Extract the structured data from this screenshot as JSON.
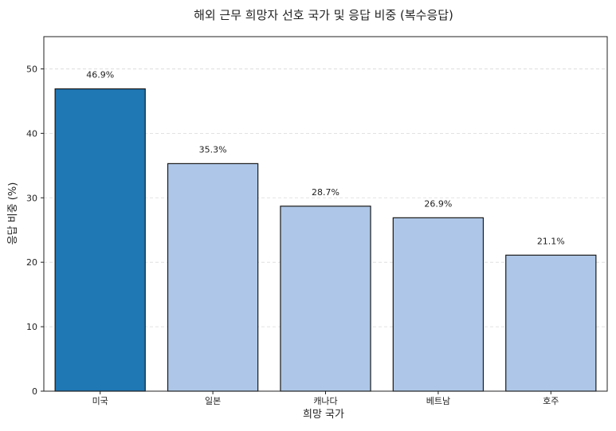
{
  "chart_data": {
    "type": "bar",
    "title": "해외 근무 희망자 선호 국가 및 응답 비중 (복수응답)",
    "xlabel": "희망 국가",
    "ylabel": "응답 비중 (%)",
    "categories": [
      "미국",
      "일본",
      "캐나다",
      "베트남",
      "호주"
    ],
    "values": [
      46.9,
      35.3,
      28.7,
      26.9,
      21.1
    ],
    "data_labels": [
      "46.9%",
      "35.3%",
      "28.7%",
      "26.9%",
      "21.1%"
    ],
    "ylim": [
      0,
      55
    ],
    "yticks": [
      0,
      10,
      20,
      30,
      40,
      50
    ],
    "grid": "y-dashed",
    "colors": {
      "highlight": "#1f77b4",
      "default": "#aec7e8",
      "edge": "#1a1a1a",
      "grid": "#d9d9d9"
    },
    "highlight_index": 0
  }
}
